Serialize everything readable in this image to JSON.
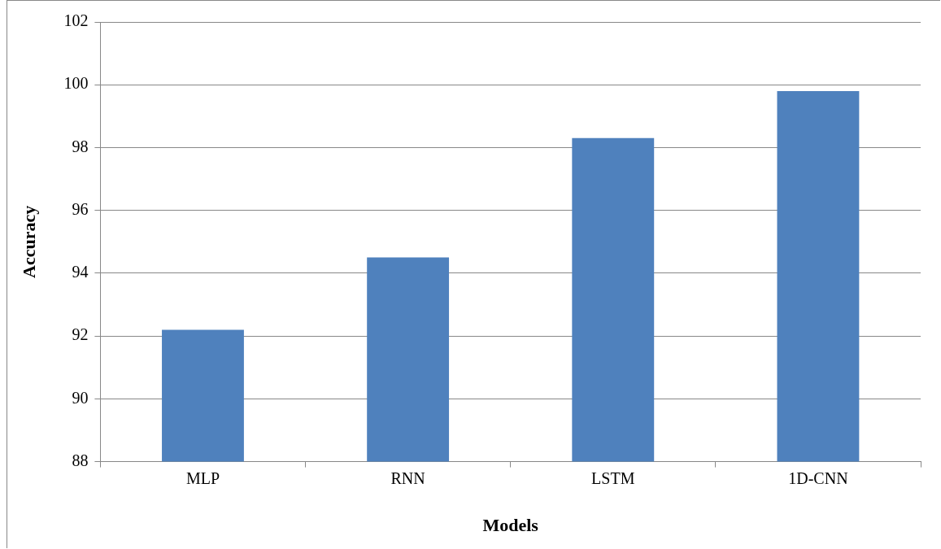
{
  "chart_data": {
    "type": "bar",
    "xlabel": "Models",
    "ylabel": "Accuracy",
    "categories": [
      "MLP",
      "RNN",
      "LSTM",
      "1D-CNN"
    ],
    "values": [
      92.2,
      94.5,
      98.3,
      99.8
    ],
    "color": "#4f81bd",
    "ylim": [
      88,
      102
    ],
    "yticks": [
      88,
      90,
      92,
      94,
      96,
      98,
      100,
      102
    ],
    "grid": "y",
    "legend": false
  }
}
